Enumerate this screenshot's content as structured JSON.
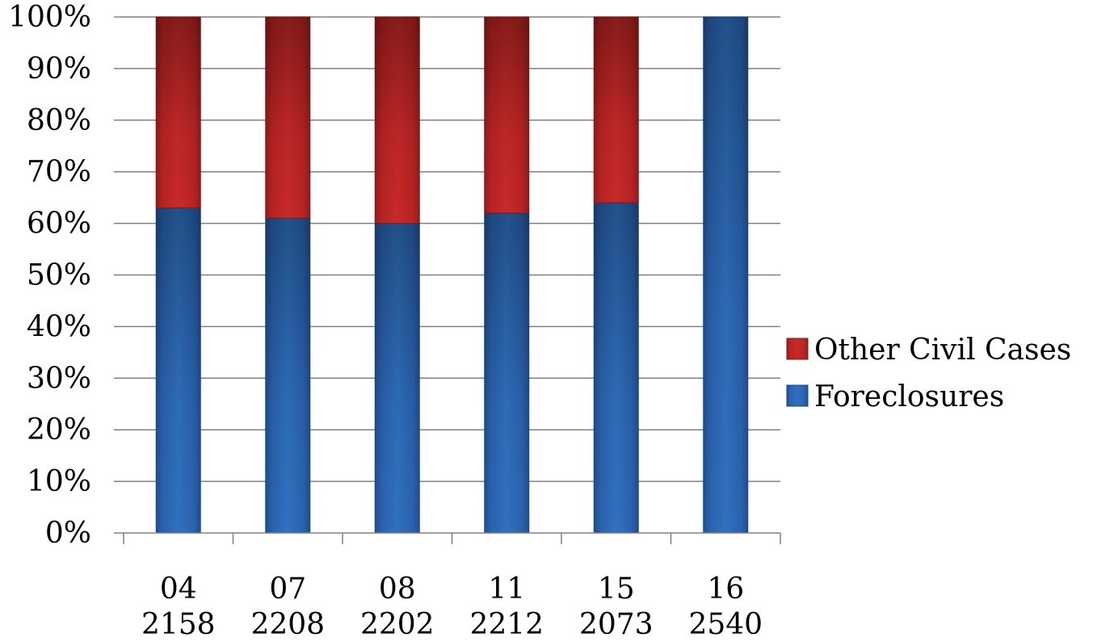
{
  "chart_data": {
    "type": "bar",
    "stacked": true,
    "percent": true,
    "categories": [
      [
        "04",
        "2158"
      ],
      [
        "07",
        "2208"
      ],
      [
        "08",
        "2202"
      ],
      [
        "11",
        "2212"
      ],
      [
        "15",
        "2073"
      ],
      [
        "16",
        "2540"
      ]
    ],
    "series": [
      {
        "name": "Foreclosures",
        "color": "#2a62ad",
        "values": [
          63,
          61,
          60,
          62,
          64,
          100
        ]
      },
      {
        "name": "Other Civil Cases",
        "color": "#b82323",
        "values": [
          37,
          39,
          40,
          38,
          36,
          0
        ]
      }
    ],
    "ylim": [
      0,
      100
    ],
    "yticks": [
      "0%",
      "10%",
      "20%",
      "30%",
      "40%",
      "50%",
      "60%",
      "70%",
      "80%",
      "90%",
      "100%"
    ],
    "grid": true,
    "legend": "right",
    "legend_order": [
      "Other Civil Cases",
      "Foreclosures"
    ]
  }
}
